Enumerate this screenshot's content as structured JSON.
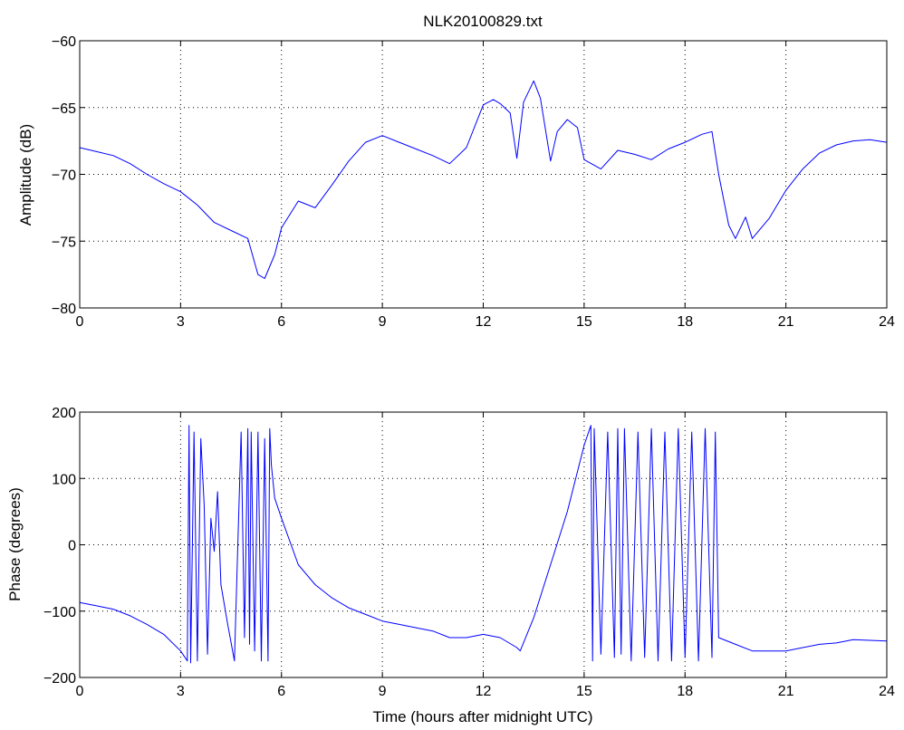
{
  "window": {
    "title": "NLK20100829.txt"
  },
  "chart_data": [
    {
      "type": "line",
      "title": "NLK20100829.txt",
      "xlabel": "",
      "ylabel": "Amplitude (dB)",
      "xlim": [
        0,
        24
      ],
      "ylim": [
        -80,
        -60
      ],
      "xticks": [
        0,
        3,
        6,
        9,
        12,
        15,
        18,
        21,
        24
      ],
      "xtick_labels": [
        "0",
        "3",
        "6",
        "9",
        "12",
        "15",
        "18",
        "21",
        "24"
      ],
      "yticks": [
        -80,
        -75,
        -70,
        -65,
        -60
      ],
      "ytick_labels": [
        "−80",
        "−75",
        "−70",
        "−65",
        "−60"
      ],
      "grid": true,
      "color": "#0000ff",
      "series": [
        {
          "x": [
            0,
            0.5,
            1.0,
            1.5,
            2.0,
            2.5,
            3.0,
            3.5,
            4.0,
            4.5,
            5.0,
            5.3,
            5.5,
            5.8,
            6.0,
            6.5,
            7.0,
            7.5,
            8.0,
            8.5,
            9.0,
            9.5,
            10.0,
            10.5,
            11.0,
            11.5,
            12.0,
            12.3,
            12.5,
            12.8,
            13.0,
            13.2,
            13.5,
            13.7,
            14.0,
            14.2,
            14.5,
            14.8,
            15.0,
            15.5,
            16.0,
            16.5,
            17.0,
            17.5,
            18.0,
            18.5,
            18.8,
            19.0,
            19.3,
            19.5,
            19.8,
            20.0,
            20.5,
            21.0,
            21.5,
            22.0,
            22.5,
            23.0,
            23.5,
            24.0
          ],
          "values": [
            -68.0,
            -68.3,
            -68.6,
            -69.2,
            -70.0,
            -70.7,
            -71.3,
            -72.3,
            -73.6,
            -74.2,
            -74.8,
            -77.5,
            -77.8,
            -76.0,
            -74.0,
            -72.0,
            -72.5,
            -70.8,
            -69.0,
            -67.6,
            -67.1,
            -67.6,
            -68.1,
            -68.6,
            -69.2,
            -68.0,
            -64.8,
            -64.4,
            -64.7,
            -65.4,
            -68.8,
            -64.6,
            -63.0,
            -64.3,
            -69.0,
            -66.8,
            -65.9,
            -66.5,
            -68.9,
            -69.6,
            -68.2,
            -68.5,
            -68.9,
            -68.1,
            -67.6,
            -67.0,
            -66.8,
            -70.0,
            -73.8,
            -74.8,
            -73.2,
            -74.8,
            -73.3,
            -71.2,
            -69.6,
            -68.4,
            -67.8,
            -67.5,
            -67.4,
            -67.6
          ]
        }
      ]
    },
    {
      "type": "line",
      "title": "",
      "xlabel": "Time (hours after midnight UTC)",
      "ylabel": "Phase (degrees)",
      "xlim": [
        0,
        24
      ],
      "ylim": [
        -200,
        200
      ],
      "xticks": [
        0,
        3,
        6,
        9,
        12,
        15,
        18,
        21,
        24
      ],
      "xtick_labels": [
        "0",
        "3",
        "6",
        "9",
        "12",
        "15",
        "18",
        "21",
        "24"
      ],
      "yticks": [
        -200,
        -100,
        0,
        100,
        200
      ],
      "ytick_labels": [
        "−200",
        "−100",
        "0",
        "100",
        "200"
      ],
      "grid": true,
      "color": "#0000ff",
      "series": [
        {
          "x": [
            0,
            0.5,
            1.0,
            1.5,
            2.0,
            2.5,
            3.0,
            3.2,
            3.25,
            3.3,
            3.4,
            3.5,
            3.6,
            3.7,
            3.8,
            3.9,
            4.0,
            4.1,
            4.2,
            4.4,
            4.6,
            4.8,
            4.9,
            5.0,
            5.05,
            5.1,
            5.2,
            5.3,
            5.4,
            5.5,
            5.6,
            5.65,
            5.7,
            5.8,
            6.0,
            6.5,
            7.0,
            7.5,
            8.0,
            8.5,
            9.0,
            9.5,
            10.0,
            10.5,
            11.0,
            11.5,
            12.0,
            12.5,
            13.0,
            13.1,
            13.5,
            14.0,
            14.5,
            15.0,
            15.2,
            15.25,
            15.3,
            15.5,
            15.7,
            15.9,
            16.0,
            16.1,
            16.2,
            16.4,
            16.6,
            16.8,
            17.0,
            17.2,
            17.4,
            17.6,
            17.8,
            18.0,
            18.2,
            18.4,
            18.6,
            18.8,
            18.9,
            19.0,
            19.5,
            20.0,
            20.5,
            21.0,
            21.5,
            22.0,
            22.5,
            23.0,
            23.5,
            24.0
          ],
          "values": [
            -87,
            -92,
            -97,
            -107,
            -120,
            -135,
            -160,
            -175,
            180,
            -178,
            170,
            -175,
            160,
            60,
            -165,
            40,
            -10,
            80,
            -60,
            -120,
            -175,
            170,
            -140,
            175,
            -150,
            170,
            -160,
            170,
            -175,
            160,
            -175,
            175,
            120,
            70,
            40,
            -30,
            -60,
            -80,
            -95,
            -105,
            -115,
            -120,
            -125,
            -130,
            -140,
            -140,
            -135,
            -140,
            -155,
            -160,
            -110,
            -30,
            50,
            150,
            180,
            -175,
            175,
            -165,
            170,
            -170,
            175,
            -165,
            175,
            -175,
            170,
            -170,
            175,
            -175,
            170,
            -175,
            175,
            -170,
            170,
            -175,
            175,
            -170,
            170,
            -140,
            -150,
            -160,
            -160,
            -160,
            -155,
            -150,
            -148,
            -143,
            -144,
            -145
          ]
        }
      ]
    }
  ]
}
